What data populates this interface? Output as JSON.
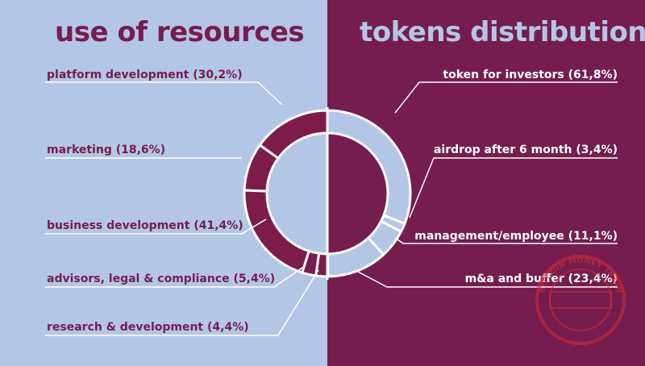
{
  "colors": {
    "left_bg": "#b4c6e5",
    "right_bg": "#751d4e",
    "left_fill": "#7d1c4a",
    "right_fill": "#b4c6e5",
    "line": "#ffffff",
    "stamp": "#d42a36"
  },
  "chart_data": [
    {
      "type": "pie",
      "title": "use of resources",
      "categories": [
        "platform development",
        "marketing",
        "business development",
        "advisors, legal & compliance",
        "research & development"
      ],
      "values": [
        30.2,
        18.6,
        41.4,
        5.4,
        4.4
      ],
      "labels": [
        "platform development (30,2%)",
        "marketing (18,6%)",
        "business development (41,4%)",
        "advisors, legal & compliance (5,4%)",
        "research & development (4,4%)"
      ],
      "legend": "left"
    },
    {
      "type": "pie",
      "title": "tokens distribution",
      "categories": [
        "token for investors",
        "airdrop after 6 month",
        "management/employee",
        "m&a and buffer"
      ],
      "values": [
        61.8,
        3.4,
        11.1,
        23.4
      ],
      "labels": [
        "token for investors (61,8%)",
        "airdrop after 6 month (3,4%)",
        "management/employee (11,1%)",
        "m&a and buffer (23,4%)"
      ],
      "legend": "right"
    }
  ],
  "stamp": {
    "text": "BITCOIN MONEY TRAIN"
  }
}
